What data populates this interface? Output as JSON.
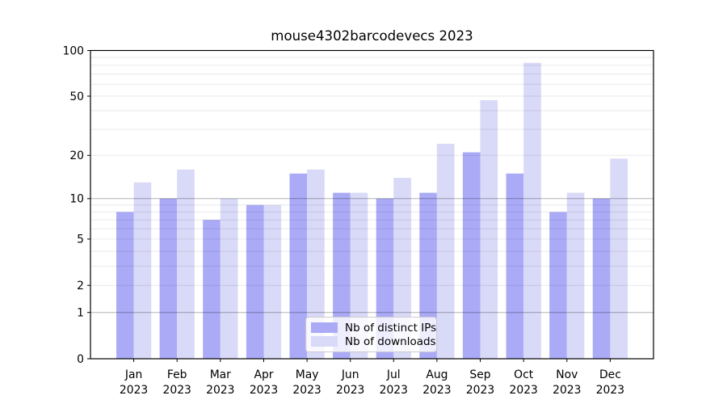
{
  "title": "mouse4302barcodevecs 2023",
  "chart_data": {
    "type": "bar",
    "title": "mouse4302barcodevecs 2023",
    "xlabel": "",
    "ylabel": "",
    "categories": [
      "Jan",
      "Feb",
      "Mar",
      "Apr",
      "May",
      "Jun",
      "Jul",
      "Aug",
      "Sep",
      "Oct",
      "Nov",
      "Dec"
    ],
    "year": "2023",
    "series": [
      {
        "name": "Nb of distinct IPs",
        "color": "#aaaaf7",
        "values": [
          8,
          10,
          7,
          9,
          15,
          11,
          10,
          11,
          21,
          15,
          8,
          10
        ]
      },
      {
        "name": "Nb of downloads",
        "color": "#d9d9f8",
        "values": [
          13,
          16,
          10,
          9,
          16,
          11,
          14,
          24,
          47,
          83,
          11,
          19
        ]
      }
    ],
    "yscale": "log10(value+1)",
    "ylim": [
      0,
      100
    ],
    "ytick_labels": [
      0,
      1,
      2,
      5,
      10,
      20,
      50,
      100
    ],
    "major_gridlines": [
      1,
      10
    ],
    "minor_gridlines": [
      2,
      3,
      4,
      5,
      6,
      7,
      8,
      9,
      20,
      30,
      40,
      50,
      60,
      70,
      80,
      90
    ],
    "grid": true,
    "legend_position": "lower center"
  },
  "colors": {
    "axis": "#000000",
    "grid_major": "rgba(0,0,0,0.30)",
    "grid_minor": "rgba(0,0,0,0.085)",
    "background": "#ffffff",
    "legend_border": "#cccccc",
    "legend_background": "rgba(255,255,255,0.8)",
    "text": "#000000"
  }
}
